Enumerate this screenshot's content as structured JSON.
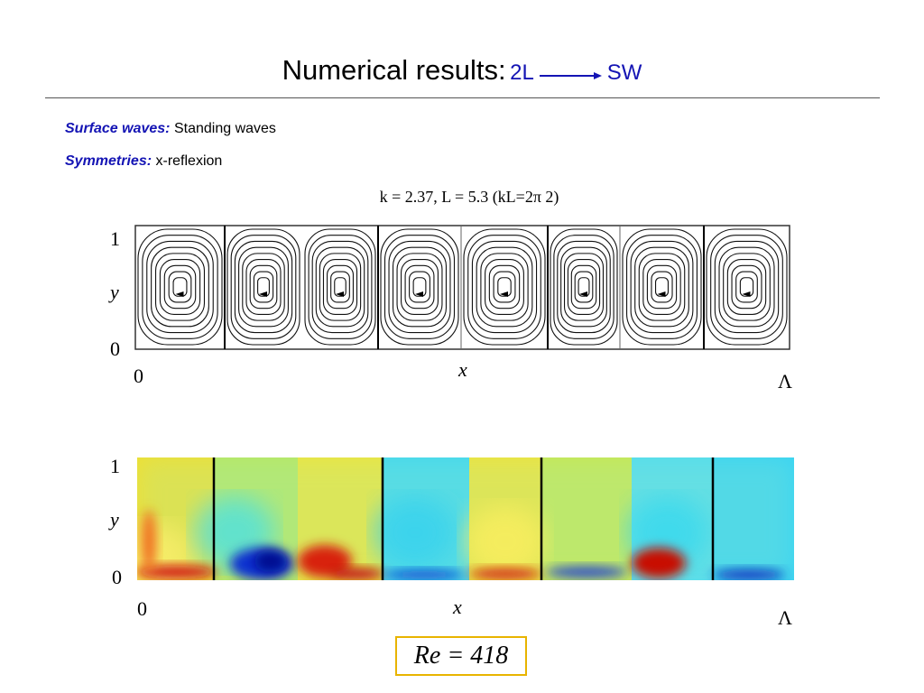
{
  "header": {
    "title": "Numerical results:",
    "from": "2L",
    "to": "SW"
  },
  "items": [
    {
      "label": "Surface waves:",
      "text": "Standing waves"
    },
    {
      "label": "Symmetries:",
      "text": "x-reflexion"
    }
  ],
  "caption": "k = 2.37, L = 5.3 (kL=2π 2)",
  "figures": [
    {
      "y_top": "1",
      "y_label": "y",
      "y_bottom": "0",
      "x_left": "0",
      "x_label": "x",
      "x_right": "Λ"
    },
    {
      "y_top": "1",
      "y_label": "y",
      "y_bottom": "0",
      "x_left": "0",
      "x_label": "x",
      "x_right": "Λ"
    }
  ],
  "footer": "Re = 418"
}
